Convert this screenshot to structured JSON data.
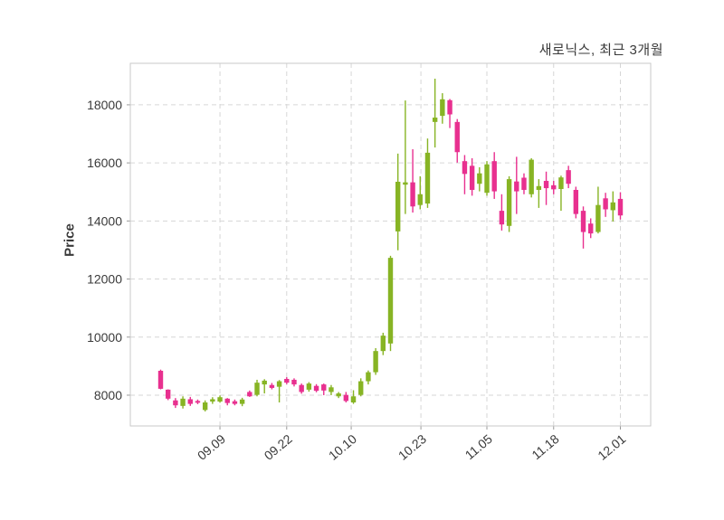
{
  "chart_data": {
    "type": "candlestick",
    "title": "새로닉스, 최근 3개월",
    "ylabel": "Price",
    "grid": true,
    "up_color": "#87b424",
    "down_color": "#e8308f",
    "background": "#ffffff",
    "ylim": [
      6940,
      19430
    ],
    "y_ticks": [
      8000,
      10000,
      12000,
      14000,
      16000,
      18000
    ],
    "x_ticks": [
      {
        "label": "09.09",
        "index": 8
      },
      {
        "label": "09.22",
        "index": 17
      },
      {
        "label": "10.10",
        "index": 25.7
      },
      {
        "label": "10.23",
        "index": 35.1
      },
      {
        "label": "11.05",
        "index": 44
      },
      {
        "label": "11.18",
        "index": 53
      },
      {
        "label": "12.01",
        "index": 62
      }
    ],
    "candles_format": [
      "open",
      "high",
      "low",
      "close"
    ],
    "candles": [
      [
        8840,
        8880,
        8200,
        8220
      ],
      [
        8190,
        8200,
        7830,
        7880
      ],
      [
        7820,
        7900,
        7560,
        7650
      ],
      [
        7630,
        7960,
        7540,
        7880
      ],
      [
        7860,
        7940,
        7630,
        7700
      ],
      [
        7800,
        7850,
        7690,
        7740
      ],
      [
        7490,
        7820,
        7440,
        7750
      ],
      [
        7780,
        7930,
        7700,
        7860
      ],
      [
        7780,
        7990,
        7740,
        7930
      ],
      [
        7880,
        7900,
        7650,
        7730
      ],
      [
        7790,
        7850,
        7650,
        7700
      ],
      [
        7700,
        7910,
        7620,
        7850
      ],
      [
        8110,
        8160,
        7940,
        7960
      ],
      [
        8010,
        8530,
        7960,
        8430
      ],
      [
        8370,
        8550,
        8060,
        8500
      ],
      [
        8350,
        8420,
        8200,
        8250
      ],
      [
        8290,
        8520,
        7750,
        8480
      ],
      [
        8560,
        8620,
        8380,
        8430
      ],
      [
        8530,
        8580,
        8300,
        8370
      ],
      [
        8350,
        8400,
        8050,
        8110
      ],
      [
        8190,
        8450,
        8120,
        8400
      ],
      [
        8320,
        8380,
        8100,
        8150
      ],
      [
        8370,
        8400,
        8000,
        8160
      ],
      [
        8110,
        8350,
        8000,
        8270
      ],
      [
        7960,
        8110,
        7900,
        8060
      ],
      [
        8010,
        8110,
        7750,
        7800
      ],
      [
        7750,
        8170,
        7700,
        7960
      ],
      [
        8010,
        8580,
        7960,
        8480
      ],
      [
        8480,
        8850,
        8370,
        8790
      ],
      [
        8790,
        9620,
        8700,
        9520
      ],
      [
        9520,
        10150,
        9380,
        10050
      ],
      [
        9780,
        12800,
        9520,
        12730
      ],
      [
        13640,
        16320,
        12990,
        15350
      ],
      [
        15250,
        18150,
        14240,
        15330
      ],
      [
        15330,
        16470,
        14290,
        14500
      ],
      [
        14550,
        15540,
        14400,
        14920
      ],
      [
        14600,
        16840,
        14450,
        16350
      ],
      [
        17410,
        18900,
        16530,
        17560
      ],
      [
        17620,
        18400,
        17350,
        18190
      ],
      [
        18160,
        18200,
        17200,
        17670
      ],
      [
        17410,
        17510,
        16010,
        16370
      ],
      [
        16060,
        16270,
        14920,
        15620
      ],
      [
        15900,
        16160,
        14870,
        15070
      ],
      [
        15280,
        15850,
        15020,
        15640
      ],
      [
        14970,
        16060,
        14870,
        15950
      ],
      [
        16060,
        16370,
        14760,
        15020
      ],
      [
        14350,
        14920,
        13670,
        13880
      ],
      [
        13830,
        15540,
        13620,
        15440
      ],
      [
        15360,
        16210,
        14240,
        15020
      ],
      [
        15490,
        15640,
        14920,
        15070
      ],
      [
        14920,
        16160,
        14810,
        16110
      ],
      [
        15070,
        15440,
        14450,
        15200
      ],
      [
        15380,
        15700,
        14550,
        15130
      ],
      [
        15230,
        15380,
        14920,
        15090
      ],
      [
        15100,
        15560,
        14350,
        15500
      ],
      [
        15750,
        15900,
        15130,
        15280
      ],
      [
        15070,
        15180,
        14090,
        14240
      ],
      [
        14350,
        14500,
        13050,
        13620
      ],
      [
        13910,
        14090,
        13410,
        13570
      ],
      [
        13620,
        15180,
        13570,
        14550
      ],
      [
        14780,
        14970,
        14140,
        14400
      ],
      [
        14370,
        15020,
        13980,
        14640
      ],
      [
        14760,
        14990,
        14050,
        14190
      ]
    ]
  }
}
